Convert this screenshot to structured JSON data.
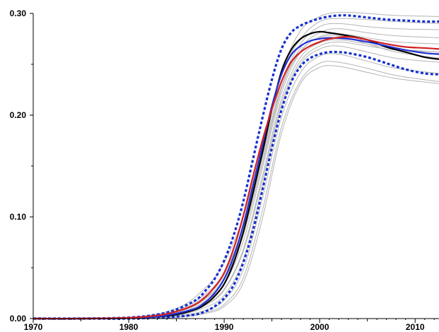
{
  "chart_data": {
    "type": "line",
    "title": "",
    "xlabel": "",
    "ylabel": "",
    "xlim": [
      1970,
      2012.5
    ],
    "ylim": [
      0,
      0.3
    ],
    "x_tick_values": [
      1970,
      1980,
      1990,
      2000,
      2010
    ],
    "x_tick_labels": [
      "1970",
      "1980",
      "1990",
      "2000",
      "2010"
    ],
    "y_tick_values": [
      0,
      0.1,
      0.2,
      0.3
    ],
    "y_tick_labels": [
      "0.00",
      "0.10",
      "0.20",
      "0.30"
    ],
    "grid": false,
    "legend": "none",
    "series": [
      {
        "role": "main",
        "color": "#000000",
        "dashed": false,
        "width": 2.2,
        "x": [
          1970,
          1975,
          1980,
          1983,
          1985,
          1987,
          1988,
          1989,
          1990,
          1991,
          1992,
          1993,
          1994,
          1995,
          1996,
          1997,
          1998,
          1999,
          2000,
          2001,
          2003,
          2005,
          2007,
          2009,
          2011,
          2012.5
        ],
        "values": [
          0,
          0,
          0.0005,
          0.002,
          0.004,
          0.009,
          0.014,
          0.022,
          0.034,
          0.055,
          0.085,
          0.123,
          0.163,
          0.206,
          0.243,
          0.264,
          0.275,
          0.28,
          0.282,
          0.281,
          0.278,
          0.274,
          0.267,
          0.262,
          0.257,
          0.255
        ]
      },
      {
        "role": "main",
        "color": "#1f2fd4",
        "dashed": false,
        "width": 2.2,
        "x": [
          1970,
          1975,
          1980,
          1983,
          1985,
          1987,
          1988,
          1989,
          1990,
          1991,
          1992,
          1993,
          1994,
          1995,
          1996,
          1997,
          1998,
          1999,
          2000,
          2001,
          2003,
          2005,
          2007,
          2009,
          2011,
          2012.5
        ],
        "values": [
          0,
          0,
          0.0005,
          0.002,
          0.005,
          0.01,
          0.016,
          0.025,
          0.039,
          0.061,
          0.092,
          0.13,
          0.17,
          0.209,
          0.24,
          0.259,
          0.268,
          0.273,
          0.275,
          0.276,
          0.275,
          0.272,
          0.268,
          0.264,
          0.261,
          0.26
        ]
      },
      {
        "role": "main",
        "color": "#d42020",
        "dashed": false,
        "width": 2.2,
        "x": [
          1970,
          1975,
          1980,
          1983,
          1985,
          1987,
          1988,
          1989,
          1990,
          1991,
          1992,
          1993,
          1994,
          1995,
          1996,
          1997,
          1998,
          1999,
          2000,
          2001,
          2003,
          2005,
          2007,
          2009,
          2011,
          2012.5
        ],
        "values": [
          0,
          0,
          0.0008,
          0.003,
          0.007,
          0.014,
          0.021,
          0.031,
          0.045,
          0.069,
          0.101,
          0.139,
          0.175,
          0.206,
          0.233,
          0.252,
          0.262,
          0.268,
          0.272,
          0.275,
          0.277,
          0.274,
          0.27,
          0.267,
          0.266,
          0.265
        ]
      },
      {
        "role": "band",
        "color": "#1530d0",
        "dashed": true,
        "width": 3.2,
        "x": [
          1970,
          1975,
          1980,
          1983,
          1985,
          1987,
          1988,
          1989,
          1990,
          1991,
          1992,
          1993,
          1994,
          1995,
          1996,
          1997,
          1998,
          1999,
          2000,
          2001,
          2002,
          2003,
          2005,
          2007,
          2009,
          2011,
          2012.5
        ],
        "values": [
          0,
          0,
          0.001,
          0.004,
          0.009,
          0.018,
          0.027,
          0.039,
          0.057,
          0.082,
          0.115,
          0.156,
          0.197,
          0.235,
          0.265,
          0.281,
          0.288,
          0.292,
          0.295,
          0.297,
          0.298,
          0.298,
          0.296,
          0.294,
          0.293,
          0.292,
          0.292
        ]
      },
      {
        "role": "band",
        "color": "#1530d0",
        "dashed": true,
        "width": 3.2,
        "x": [
          1970,
          1975,
          1980,
          1983,
          1985,
          1987,
          1988,
          1989,
          1990,
          1991,
          1992,
          1993,
          1994,
          1995,
          1996,
          1997,
          1998,
          1999,
          2000,
          2001,
          2002,
          2003,
          2005,
          2007,
          2009,
          2011,
          2012.5
        ],
        "values": [
          0,
          0,
          0,
          0.001,
          0.002,
          0.004,
          0.007,
          0.012,
          0.02,
          0.033,
          0.055,
          0.086,
          0.126,
          0.168,
          0.205,
          0.232,
          0.248,
          0.256,
          0.26,
          0.262,
          0.262,
          0.261,
          0.257,
          0.251,
          0.245,
          0.241,
          0.24
        ]
      }
    ],
    "sample_curves": {
      "color": "#b4b4b4",
      "width": 1,
      "x": [
        1970,
        1980,
        1985,
        1988,
        1990,
        1992,
        1994,
        1996,
        1998,
        2000,
        2002,
        2005,
        2008,
        2012.5
      ],
      "curves": [
        [
          0,
          0.001,
          0.01,
          0.03,
          0.055,
          0.1,
          0.17,
          0.24,
          0.275,
          0.292,
          0.295,
          0.294,
          0.292,
          0.29
        ],
        [
          0,
          0.001,
          0.008,
          0.024,
          0.045,
          0.09,
          0.16,
          0.232,
          0.27,
          0.287,
          0.29,
          0.287,
          0.285,
          0.284
        ],
        [
          0,
          0.001,
          0.006,
          0.02,
          0.04,
          0.085,
          0.156,
          0.228,
          0.266,
          0.281,
          0.285,
          0.281,
          0.278,
          0.276
        ],
        [
          0,
          0.001,
          0.005,
          0.017,
          0.034,
          0.076,
          0.148,
          0.222,
          0.262,
          0.277,
          0.28,
          0.276,
          0.272,
          0.27
        ],
        [
          0,
          0.0,
          0.004,
          0.014,
          0.029,
          0.068,
          0.14,
          0.216,
          0.257,
          0.271,
          0.274,
          0.27,
          0.265,
          0.262
        ],
        [
          0,
          0.0,
          0.003,
          0.011,
          0.023,
          0.058,
          0.13,
          0.208,
          0.25,
          0.265,
          0.268,
          0.262,
          0.256,
          0.252
        ],
        [
          0,
          0.0,
          0.002,
          0.008,
          0.018,
          0.048,
          0.118,
          0.198,
          0.242,
          0.258,
          0.26,
          0.253,
          0.246,
          0.241
        ],
        [
          0,
          0.0,
          0.002,
          0.006,
          0.014,
          0.04,
          0.106,
          0.188,
          0.234,
          0.251,
          0.252,
          0.246,
          0.239,
          0.233
        ],
        [
          0,
          0.0,
          0.001,
          0.005,
          0.012,
          0.035,
          0.098,
          0.182,
          0.231,
          0.247,
          0.248,
          0.242,
          0.236,
          0.231
        ],
        [
          0,
          0.001,
          0.007,
          0.022,
          0.043,
          0.092,
          0.168,
          0.242,
          0.283,
          0.297,
          0.301,
          0.3,
          0.298,
          0.297
        ],
        [
          0,
          0.001,
          0.006,
          0.019,
          0.038,
          0.082,
          0.152,
          0.226,
          0.263,
          0.276,
          0.278,
          0.27,
          0.262,
          0.256
        ],
        [
          0,
          0.0,
          0.004,
          0.013,
          0.028,
          0.066,
          0.136,
          0.212,
          0.253,
          0.268,
          0.272,
          0.268,
          0.264,
          0.262
        ]
      ]
    }
  }
}
